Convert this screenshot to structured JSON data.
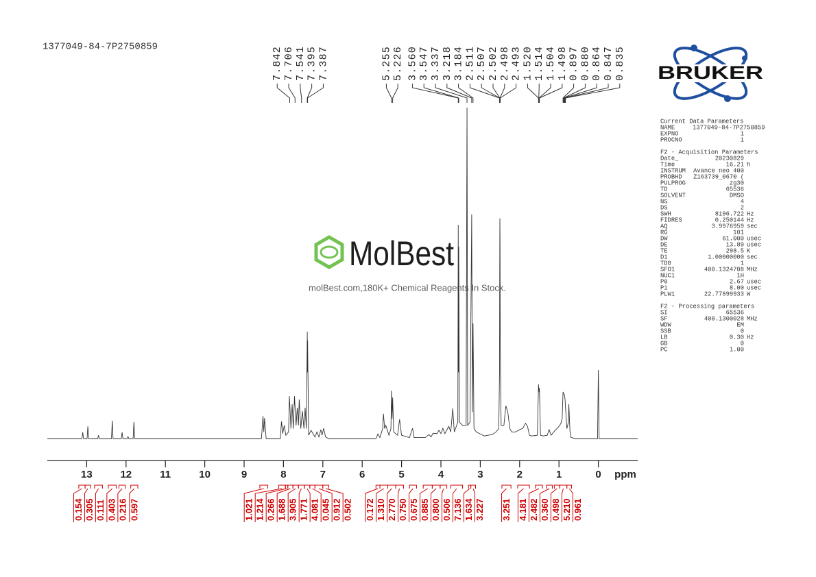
{
  "chart_data": {
    "type": "nmr",
    "title": "1377049-84-7P2750859",
    "x_label": "ppm",
    "xlim": [
      14,
      -1
    ],
    "xticks": [
      13,
      12,
      11,
      10,
      9,
      8,
      7,
      6,
      5,
      4,
      3,
      2,
      1,
      0
    ],
    "ylim": [
      0,
      100
    ],
    "color": "#333333",
    "x": [
      14.0,
      13.12,
      13.1,
      13.08,
      12.99,
      12.97,
      12.95,
      12.72,
      12.7,
      12.68,
      12.37,
      12.35,
      12.33,
      12.12,
      12.1,
      12.08,
      11.97,
      11.95,
      11.93,
      11.82,
      11.8,
      11.78,
      8.56,
      8.52,
      8.5,
      8.48,
      8.44,
      8.08,
      8.05,
      8.02,
      7.98,
      7.94,
      7.87,
      7.85,
      7.81,
      7.78,
      7.75,
      7.72,
      7.68,
      7.65,
      7.62,
      7.6,
      7.56,
      7.52,
      7.48,
      7.45,
      7.42,
      7.395,
      7.391,
      7.387,
      7.36,
      7.3,
      7.2,
      7.15,
      7.1,
      7.05,
      7.02,
      6.98,
      6.93,
      6.85,
      5.65,
      5.6,
      5.55,
      5.48,
      5.46,
      5.43,
      5.4,
      5.32,
      5.27,
      5.255,
      5.24,
      5.226,
      5.2,
      5.1,
      5.05,
      5.0,
      4.8,
      4.72,
      4.68,
      4.4,
      4.3,
      4.25,
      4.2,
      4.1,
      4.05,
      4.0,
      3.95,
      3.9,
      3.8,
      3.75,
      3.7,
      3.66,
      3.6,
      3.57,
      3.56,
      3.553,
      3.547,
      3.53,
      3.45,
      3.36,
      3.337,
      3.32,
      3.26,
      3.218,
      3.2,
      3.184,
      3.16,
      3.1,
      2.9,
      2.7,
      2.6,
      2.53,
      2.511,
      2.507,
      2.502,
      2.498,
      2.493,
      2.47,
      2.4,
      2.35,
      2.3,
      2.25,
      2.2,
      2.1,
      2.0,
      1.92,
      1.88,
      1.85,
      1.8,
      1.75,
      1.7,
      1.55,
      1.52,
      1.514,
      1.504,
      1.498,
      1.47,
      1.4,
      1.3,
      1.25,
      1.2,
      1.1,
      1.05,
      1.0,
      0.95,
      0.92,
      0.897,
      0.88,
      0.864,
      0.847,
      0.835,
      0.8,
      0.76,
      0.75,
      0.72,
      0.7,
      0.6,
      0.02,
      0.0,
      -0.02,
      -1.0
    ],
    "values": [
      0,
      0,
      1.9,
      0,
      0,
      3.7,
      0,
      0,
      1,
      0,
      0,
      5.4,
      0,
      0,
      1.9,
      0,
      0,
      0.6,
      0,
      0,
      5,
      0,
      0,
      6.8,
      2,
      6.2,
      0,
      0,
      5.2,
      1.5,
      4,
      1,
      2,
      12.8,
      3,
      10.4,
      3,
      12.8,
      4,
      9.3,
      4,
      11.8,
      3,
      8.3,
      3,
      9.3,
      3,
      32.3,
      20,
      29.6,
      1,
      2.5,
      0.5,
      2,
      0.5,
      2.7,
      1,
      3.1,
      0.5,
      0,
      0,
      1.4,
      0.3,
      3,
      7.5,
      3,
      4,
      1,
      3,
      14.5,
      6,
      12.4,
      2,
      1,
      5.8,
      1,
      0.3,
      3.1,
      0.3,
      0.3,
      1.2,
      0.5,
      1.6,
      1.5,
      2.5,
      1.5,
      3.1,
      1.5,
      3.7,
      2,
      9.1,
      2,
      4,
      5,
      64.6,
      20,
      58,
      5,
      4,
      4,
      100,
      4,
      5,
      67.7,
      8,
      34.8,
      3,
      2,
      0.8,
      1.2,
      2,
      3,
      20,
      45,
      66.5,
      60,
      30,
      4,
      4,
      9.9,
      8,
      3,
      2,
      2,
      2.7,
      3.1,
      4,
      4.6,
      3.7,
      1,
      0.8,
      1,
      16.4,
      15,
      14,
      15.3,
      1,
      0.8,
      1,
      2.7,
      1,
      2.5,
      3,
      3.7,
      4.6,
      6,
      14.1,
      13.5,
      13.3,
      12,
      9.5,
      3,
      5,
      10.4,
      2,
      0.4,
      0,
      0,
      20.7,
      0,
      0
    ],
    "peaks": [
      7.842,
      7.706,
      7.541,
      7.395,
      7.387,
      5.255,
      5.226,
      {
        "value": 3.56,
        "label": "3.560"
      },
      3.547,
      3.337,
      3.218,
      3.184,
      2.511,
      2.507,
      2.502,
      2.498,
      2.493,
      {
        "value": 1.52,
        "label": "1.520"
      },
      1.514,
      1.504,
      1.498,
      0.897,
      {
        "value": 0.88,
        "label": "0.880"
      },
      0.864,
      0.847,
      0.835
    ],
    "integrals": {
      "color": "#cc0000",
      "ranges": [
        [
          13.2,
          13.04
        ],
        [
          13.04,
          12.9
        ],
        [
          12.8,
          12.6
        ],
        [
          12.45,
          12.25
        ],
        [
          12.18,
          12.02
        ],
        [
          11.88,
          11.7
        ],
        [
          8.6,
          8.4
        ],
        [
          8.12,
          7.95
        ],
        [
          7.95,
          7.89
        ],
        [
          7.89,
          7.76
        ],
        [
          7.76,
          7.62
        ],
        [
          7.62,
          7.47
        ],
        [
          7.47,
          7.33
        ],
        [
          7.33,
          7.2
        ],
        [
          7.2,
          7.0
        ],
        [
          7.0,
          6.85
        ],
        [
          5.65,
          5.55
        ],
        [
          5.55,
          5.35
        ],
        [
          5.35,
          5.15
        ],
        [
          5.15,
          4.95
        ],
        [
          4.8,
          4.62
        ],
        [
          4.45,
          4.22
        ],
        [
          4.22,
          4.02
        ],
        [
          4.02,
          3.85
        ],
        [
          3.75,
          3.45
        ],
        [
          3.3,
          3.24
        ],
        [
          3.24,
          3.12
        ],
        [
          2.45,
          2.22
        ],
        [
          2.05,
          1.75
        ],
        [
          1.6,
          1.42
        ],
        [
          1.32,
          1.17
        ],
        [
          1.12,
          0.98
        ],
        [
          0.98,
          0.8
        ],
        [
          0.8,
          0.68
        ]
      ],
      "values": [
        0.154,
        0.305,
        0.111,
        0.403,
        0.216,
        0.597,
        1.021,
        1.214,
        0.266,
        1.688,
        3.905,
        1.771,
        4.081,
        0.045,
        0.912,
        0.502,
        0.172,
        1.31,
        2.77,
        0.75,
        0.675,
        0.885,
        0.8,
        0.506,
        7.136,
        1.634,
        3.227,
        3.251,
        4.181,
        2.482,
        0.36,
        0.498,
        5.21,
        0.961
      ],
      "value_labels": [
        "0.154",
        "0.305",
        "0.111",
        "0.403",
        "0.216",
        "0.597",
        "1.021",
        "1.214",
        "0.266",
        "1.688",
        "3.905",
        "1.771",
        "4.081",
        "0.045",
        "0.912",
        "0.502",
        "0.172",
        "1.310",
        "2.770",
        "0.750",
        "0.675",
        "0.885",
        "0.800",
        "0.506",
        "7.136",
        "1.634",
        "3.227",
        "3.251",
        "4.181",
        "2.482",
        "0.360",
        "0.498",
        "5.210",
        "0.961"
      ]
    }
  },
  "logo": {
    "text": "BRUKER"
  },
  "watermark": {
    "brand": "MolBest",
    "tagline": "molBest.com,180K+ Chemical Reagents In Stock."
  },
  "parameters": [
    {
      "title": "Current Data Parameters",
      "rows": [
        [
          "NAME",
          "1377049-84-7P2750859"
        ],
        [
          "EXPNO",
          "1"
        ],
        [
          "PROCNO",
          "1"
        ]
      ]
    },
    {
      "title": "F2 - Acquisition Parameters",
      "rows": [
        [
          "Date_",
          "20230829"
        ],
        [
          "Time",
          "16.21",
          "h"
        ],
        [
          "INSTRUM",
          "Avance neo 400"
        ],
        [
          "PROBHD",
          "Z163739_0670 ("
        ],
        [
          "PULPROG",
          "zg30"
        ],
        [
          "TD",
          "65536"
        ],
        [
          "SOLVENT",
          "DMSO"
        ],
        [
          "NS",
          "4"
        ],
        [
          "DS",
          "2"
        ],
        [
          "SWH",
          "8196.722",
          "Hz"
        ],
        [
          "FIDRES",
          "0.250144",
          "Hz"
        ],
        [
          "AQ",
          "3.9976959",
          "sec"
        ],
        [
          "RG",
          "101"
        ],
        [
          "DW",
          "61.000",
          "usec"
        ],
        [
          "DE",
          "13.89",
          "usec"
        ],
        [
          "TE",
          "298.5",
          "K"
        ],
        [
          "D1",
          "1.00000000",
          "sec"
        ],
        [
          "TD0",
          "1"
        ],
        [
          "SFO1",
          "400.1324708",
          "MHz"
        ],
        [
          "NUC1",
          "1H"
        ],
        [
          "P0",
          "2.67",
          "usec"
        ],
        [
          "P1",
          "8.00",
          "usec"
        ],
        [
          "PLW1",
          "22.77899933",
          "W"
        ]
      ]
    },
    {
      "title": "F2 - Processing parameters",
      "rows": [
        [
          "SI",
          "65536"
        ],
        [
          "SF",
          "400.1300028",
          "MHz"
        ],
        [
          "WDW",
          "EM"
        ],
        [
          "SSB",
          "0"
        ],
        [
          "LB",
          "0.30",
          "Hz"
        ],
        [
          "GB",
          "0"
        ],
        [
          "PC",
          "1.00"
        ]
      ]
    }
  ]
}
